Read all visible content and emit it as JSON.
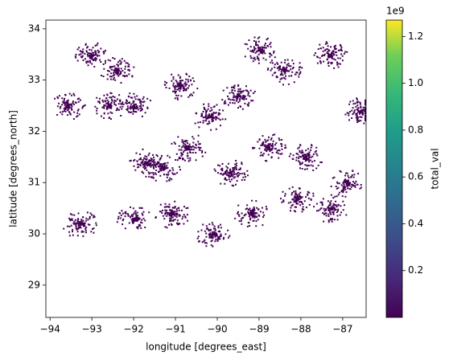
{
  "chart_data": {
    "type": "raster",
    "x_label": "longitude [degrees_east]",
    "y_label": "latitude [degrees_north]",
    "colorbar_label": "total_val",
    "colorbar_offset": "1e9",
    "colormap": "viridis",
    "xlim": [
      -94.1,
      -86.44
    ],
    "ylim": [
      28.37,
      34.17
    ],
    "clim": [
      0,
      1.27
    ],
    "xticks": [
      {
        "value": -94,
        "label": "−94"
      },
      {
        "value": -93,
        "label": "−93"
      },
      {
        "value": -92,
        "label": "−92"
      },
      {
        "value": -91,
        "label": "−91"
      },
      {
        "value": -90,
        "label": "−90"
      },
      {
        "value": -89,
        "label": "−89"
      },
      {
        "value": -88,
        "label": "−88"
      },
      {
        "value": -87,
        "label": "−87"
      }
    ],
    "yticks": [
      29,
      30,
      31,
      32,
      33,
      34
    ],
    "cticks": [
      0.2,
      0.4,
      0.6,
      0.8,
      {
        "value": 1,
        "label": "1.0"
      },
      1.2
    ],
    "x": [
      -93.6,
      -92.6,
      -92.0,
      -90.2,
      -89.5,
      -88.8,
      -87.3,
      -86.6,
      -92.0,
      -91.1,
      -90.1,
      -89.2,
      -88.1,
      -87.3,
      -93.3,
      -91.3,
      -90.7,
      -89.7,
      -88.4,
      -93.0,
      -91.7,
      -90.9,
      -87.9,
      -89.0,
      -92.4,
      -86.9
    ],
    "y": [
      32.5,
      32.5,
      32.5,
      32.3,
      32.7,
      31.7,
      33.5,
      32.4,
      30.3,
      30.4,
      30.0,
      30.4,
      30.7,
      30.5,
      30.2,
      31.3,
      31.7,
      31.2,
      33.2,
      33.5,
      31.4,
      32.9,
      31.5,
      33.6,
      33.2,
      31.0
    ],
    "values": [
      0.01,
      0.01,
      0.01,
      0.01,
      0.01,
      0.01,
      0.01,
      0.01,
      0.01,
      0.01,
      0.01,
      0.01,
      0.01,
      0.01,
      0.01,
      0.01,
      0.01,
      0.01,
      0.01,
      0.01,
      0.01,
      0.01,
      0.01,
      0.01,
      0.01,
      0.01
    ]
  }
}
